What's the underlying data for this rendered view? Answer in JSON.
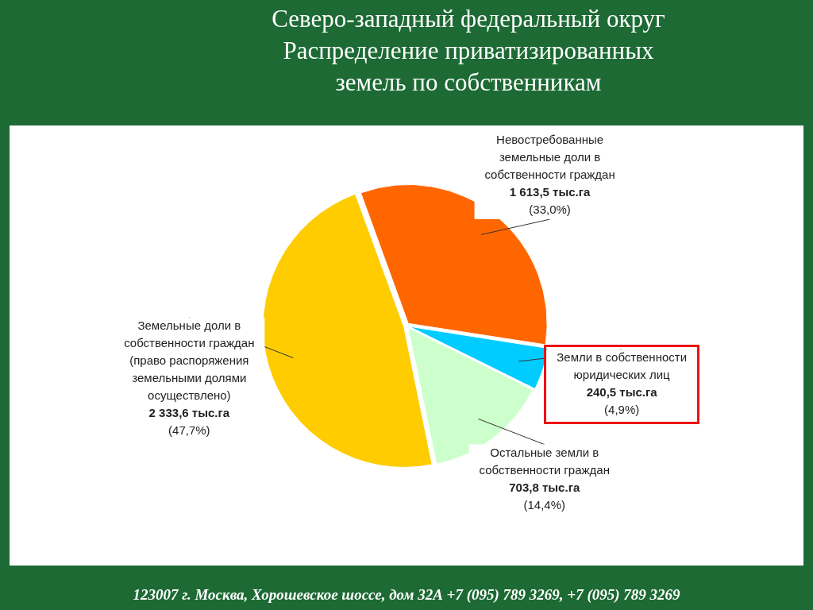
{
  "chart_data": {
    "type": "pie",
    "title": "Северо-западный федеральный округ",
    "subtitle": "Распределение приватизированных земель по собственникам",
    "categories": [
      "Невостребованные земельные доли в собственности граждан",
      "Земли в собственности юридических лиц",
      "Остальные земли в собственности граждан",
      "Земельные доли в собственности граждан (право распоряжения земельными долями осуществлено)"
    ],
    "values": [
      33.0,
      4.9,
      14.4,
      47.7
    ],
    "value_labels": [
      "1 613,5 тыс.га (33,0%)",
      "240,5 тыс.га (4,9%)",
      "703,8 тыс.га (14,4%)",
      "2 333,6 тыс.га (47,7%)"
    ],
    "colors": [
      "#ff6600",
      "#00ccff",
      "#ccffcc",
      "#ffcc00"
    ],
    "legend": false,
    "annotations": [
      "123007 г. Москва, Хорошевское шоссе, дом 32А  +7 (095) 789 3269, +7 (095)  789 3269"
    ]
  }
}
